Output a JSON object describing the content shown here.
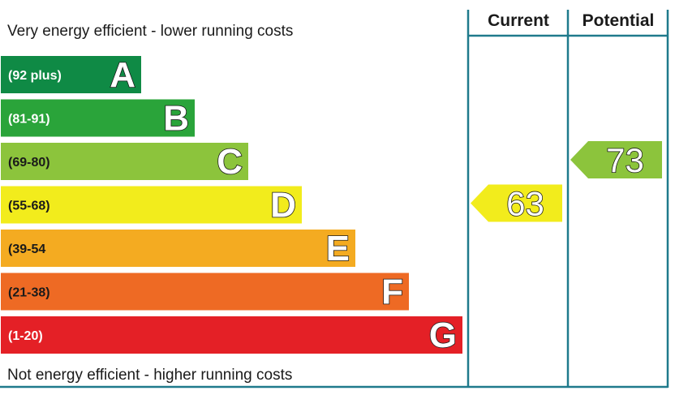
{
  "top_caption": "Very energy efficient - lower running costs",
  "bottom_caption": "Not energy efficient - higher running costs",
  "columns": {
    "current": "Current",
    "potential": "Potential"
  },
  "colors": {
    "frame": "#1f7a8c"
  },
  "chart_data": {
    "type": "bar",
    "categories": [
      "A",
      "B",
      "C",
      "D",
      "E",
      "F",
      "G"
    ],
    "ranges": [
      "(92 plus)",
      "(81-91)",
      "(69-80)",
      "(55-68)",
      "(39-54",
      "(21-38)",
      "(1-20)"
    ],
    "colors": [
      "#0f8a45",
      "#2aa43a",
      "#8cc43c",
      "#f2ec1c",
      "#f4ab21",
      "#ee6a24",
      "#e42026"
    ],
    "range_text_colors": [
      "#ffffff",
      "#ffffff",
      "#1a1a1a",
      "#1a1a1a",
      "#1a1a1a",
      "#1a1a1a",
      "#ffffff"
    ],
    "current": {
      "value": 63,
      "band": "D",
      "color": "#f2ec1c"
    },
    "potential": {
      "value": 73,
      "band": "C",
      "color": "#8cc43c"
    }
  }
}
